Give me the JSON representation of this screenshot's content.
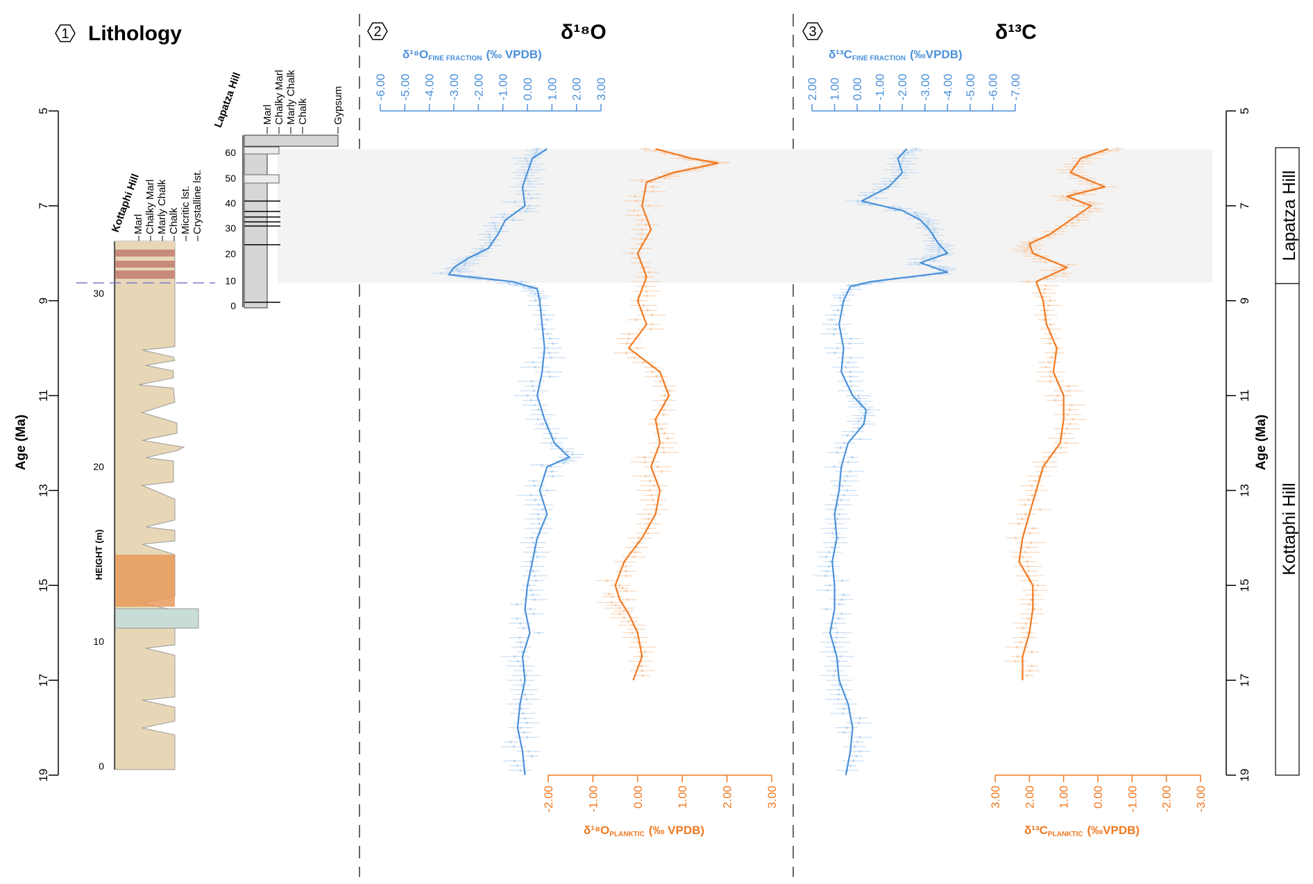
{
  "panels": [
    {
      "num": "1",
      "title": "Lithology"
    },
    {
      "num": "2",
      "title": "δ¹⁸O"
    },
    {
      "num": "3",
      "title": "δ¹³C"
    }
  ],
  "age_axis": {
    "label": "Age (Ma)",
    "range": [
      5,
      19
    ],
    "ticks": [
      5,
      7,
      9,
      11,
      13,
      15,
      17,
      19
    ]
  },
  "lithology": {
    "kottaphi": {
      "name": "Kottaphi Hill",
      "columns": [
        "Marl",
        "Chalky Marl",
        "Marly Chalk",
        "Chalk",
        "Micritic lst.",
        "Crystalline lst."
      ],
      "height_label": "HEIGHT (m)",
      "height_ticks": [
        0,
        10,
        20,
        30
      ],
      "colors": {
        "marl": "#e8d7b6",
        "red_band": "#c98a7e",
        "orange": "#e89a5c",
        "limestone": "#c9ddd8"
      }
    },
    "lapatza": {
      "name": "Lapatza Hill",
      "columns": [
        "Marl",
        "Chalky Marl",
        "Marly Chalk",
        "Chalk",
        "Gypsum"
      ],
      "height_ticks": [
        0,
        10,
        20,
        30,
        40,
        50,
        60
      ],
      "colors": {
        "column": "#d6d6d6"
      }
    }
  },
  "section_labels": {
    "upper": "Lapatza Hill",
    "lower": "Kottaphi Hill",
    "boundary_age": 8.62
  },
  "chart_data": [
    {
      "type": "line",
      "title": "δ¹⁸O",
      "ylabel": "Age (Ma)",
      "ylim": [
        5,
        19
      ],
      "highlight_band": {
        "from_age": 5.8,
        "to_age": 8.62,
        "color": "#f3f3f3"
      },
      "series": [
        {
          "name": "δ¹⁸O FINE FRACTION (‰ VPDB)",
          "axis_label_main": "δ¹⁸O",
          "axis_label_sub": "FINE FRACTION",
          "axis_label_tail": "(‰ VPDB)",
          "color": "#4a90d9",
          "xlim": [
            -6,
            3
          ],
          "x_ticks": [
            -6,
            -5,
            -4,
            -3,
            -2,
            -1,
            0,
            1,
            2,
            3
          ],
          "x_tick_labels": [
            "-6.00",
            "-5.00",
            "-4.00",
            "-3.00",
            "-2.00",
            "-1.00",
            "0.00",
            "1.00",
            "2.00",
            "3.00"
          ],
          "age": [
            5.8,
            6.0,
            6.3,
            6.6,
            7.0,
            7.3,
            7.6,
            7.9,
            8.1,
            8.3,
            8.45,
            8.6,
            8.75,
            9.0,
            9.5,
            10.0,
            10.5,
            11.0,
            11.5,
            12.0,
            12.3,
            12.5,
            13.0,
            13.5,
            14.0,
            14.5,
            15.0,
            15.5,
            16.0,
            16.5,
            17.0,
            17.5,
            18.0,
            18.5,
            19.0
          ],
          "values": [
            0.8,
            0.2,
            0.0,
            -0.2,
            -0.1,
            -0.9,
            -1.2,
            -1.6,
            -2.4,
            -3.0,
            -3.2,
            -0.6,
            0.4,
            0.5,
            0.6,
            0.7,
            0.6,
            0.4,
            0.7,
            1.1,
            1.7,
            0.8,
            0.5,
            0.8,
            0.4,
            0.2,
            0.0,
            -0.1,
            0.1,
            -0.2,
            -0.1,
            -0.3,
            -0.4,
            -0.2,
            -0.1
          ]
        },
        {
          "name": "δ¹⁸O PLANKTIC (‰ VPDB)",
          "axis_label_main": "δ¹⁸O",
          "axis_label_sub": "PLANKTIC",
          "axis_label_tail": "(‰ VPDB)",
          "color": "#f07820",
          "xlim": [
            -2,
            3
          ],
          "x_ticks": [
            -2,
            -1,
            0,
            1,
            2,
            3
          ],
          "x_tick_labels": [
            "-2.00",
            "-1.00",
            "0.00",
            "1.00",
            "2.00",
            "3.00"
          ],
          "age": [
            5.8,
            6.0,
            6.1,
            6.3,
            6.5,
            7.0,
            7.5,
            8.0,
            8.5,
            9.0,
            9.5,
            10.0,
            10.5,
            11.0,
            11.5,
            12.0,
            12.5,
            13.0,
            13.5,
            14.0,
            14.5,
            15.0,
            15.3,
            15.6,
            16.0,
            16.5,
            17.0
          ],
          "values": [
            0.4,
            1.2,
            1.8,
            0.8,
            0.2,
            0.1,
            0.3,
            0.0,
            0.2,
            0.0,
            0.2,
            -0.2,
            0.5,
            0.7,
            0.4,
            0.5,
            0.3,
            0.5,
            0.4,
            0.1,
            -0.3,
            -0.5,
            -0.4,
            -0.2,
            0.0,
            0.1,
            -0.1
          ]
        }
      ]
    },
    {
      "type": "line",
      "title": "δ¹³C",
      "ylabel": "Age (Ma)",
      "ylim": [
        5,
        19
      ],
      "highlight_band": {
        "from_age": 5.8,
        "to_age": 8.62,
        "color": "#f3f3f3"
      },
      "series": [
        {
          "name": "δ¹³C FINE FRACTION (‰VPDB)",
          "axis_label_main": "δ¹³C",
          "axis_label_sub": "FINE FRACTION",
          "axis_label_tail": "(‰VPDB)",
          "color": "#4a90d9",
          "xlim": [
            2,
            -7
          ],
          "x_ticks": [
            2,
            1,
            0,
            -1,
            -2,
            -3,
            -4,
            -5,
            -6,
            -7
          ],
          "x_tick_labels": [
            "2.00",
            "1.00",
            "0.00",
            "-1.00",
            "-2.00",
            "-3.00",
            "-4.00",
            "-5.00",
            "-6.00",
            "-7.00"
          ],
          "age": [
            5.8,
            6.0,
            6.3,
            6.6,
            6.9,
            7.1,
            7.3,
            7.5,
            7.8,
            8.0,
            8.2,
            8.4,
            8.6,
            8.7,
            9.0,
            9.5,
            10.0,
            10.5,
            11.0,
            11.3,
            11.6,
            12.0,
            12.5,
            13.0,
            13.5,
            14.0,
            14.5,
            15.0,
            15.5,
            16.0,
            16.5,
            17.0,
            17.5,
            18.0,
            18.5,
            19.0
          ],
          "values": [
            -2.2,
            -1.8,
            -2.0,
            -1.4,
            -0.2,
            -2.0,
            -2.8,
            -3.2,
            -3.6,
            -4.0,
            -2.8,
            -4.0,
            -0.6,
            0.3,
            0.6,
            0.8,
            0.6,
            0.7,
            0.2,
            -0.4,
            -0.3,
            0.4,
            0.7,
            0.8,
            1.0,
            0.9,
            1.1,
            1.0,
            1.0,
            1.2,
            0.9,
            0.8,
            0.4,
            0.2,
            0.3,
            0.5
          ]
        },
        {
          "name": "δ¹³C PLANKTIC (‰VPDB)",
          "axis_label_main": "δ¹³C",
          "axis_label_sub": "PLANKTIC",
          "axis_label_tail": "(‰VPDB)",
          "color": "#f07820",
          "xlim": [
            3,
            -3
          ],
          "x_ticks": [
            3,
            2,
            1,
            0,
            -1,
            -2,
            -3
          ],
          "x_tick_labels": [
            "3.00",
            "2.00",
            "1.00",
            "0.00",
            "-1.00",
            "-2.00",
            "-3.00"
          ],
          "age": [
            5.8,
            6.0,
            6.3,
            6.6,
            6.8,
            7.0,
            7.3,
            7.6,
            7.8,
            8.0,
            8.3,
            8.6,
            9.0,
            9.5,
            10.0,
            10.5,
            11.0,
            11.5,
            12.0,
            12.5,
            13.0,
            13.5,
            14.0,
            14.5,
            15.0,
            15.5,
            16.0,
            16.5,
            17.0
          ],
          "values": [
            -0.3,
            0.5,
            0.8,
            -0.2,
            0.9,
            0.2,
            0.8,
            1.4,
            2.0,
            1.9,
            0.9,
            1.8,
            1.6,
            1.5,
            1.2,
            1.3,
            1.0,
            1.0,
            1.1,
            1.6,
            1.8,
            2.0,
            2.2,
            2.3,
            1.9,
            1.9,
            2.0,
            2.2,
            2.2
          ]
        }
      ]
    }
  ]
}
